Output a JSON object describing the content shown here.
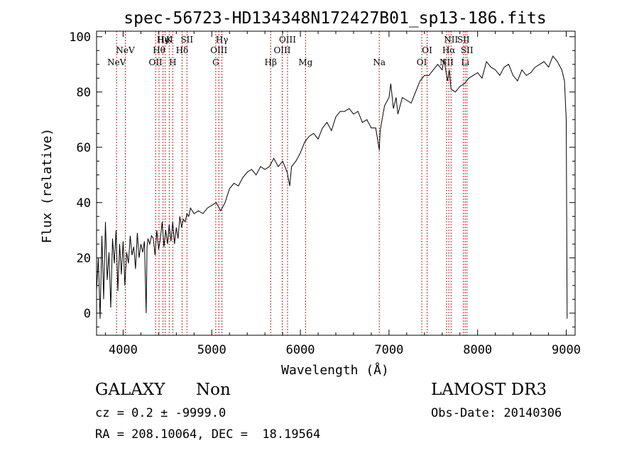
{
  "chart_data": {
    "type": "line",
    "title": "spec-56723-HD134348N172427B01_sp13-186.fits",
    "xlabel": "Wavelength (Å)",
    "ylabel": "Flux (relative)",
    "xlim": [
      3700,
      9100
    ],
    "ylim": [
      -8,
      102
    ],
    "xticks": [
      4000,
      5000,
      6000,
      7000,
      8000,
      9000
    ],
    "yticks": [
      0,
      20,
      40,
      60,
      80,
      100
    ],
    "grid": false,
    "series": [
      {
        "line_color": "#000000",
        "x": [
          3700,
          3720,
          3740,
          3760,
          3780,
          3800,
          3820,
          3840,
          3860,
          3880,
          3900,
          3920,
          3940,
          3960,
          3980,
          4000,
          4020,
          4040,
          4060,
          4080,
          4100,
          4120,
          4140,
          4160,
          4180,
          4200,
          4220,
          4240,
          4260,
          4270,
          4280,
          4300,
          4320,
          4340,
          4360,
          4380,
          4400,
          4420,
          4440,
          4460,
          4480,
          4500,
          4520,
          4540,
          4560,
          4580,
          4600,
          4620,
          4640,
          4660,
          4680,
          4700,
          4720,
          4740,
          4760,
          4780,
          4800,
          4850,
          4900,
          4950,
          5000,
          5050,
          5100,
          5150,
          5200,
          5250,
          5300,
          5350,
          5400,
          5450,
          5500,
          5550,
          5600,
          5650,
          5700,
          5750,
          5800,
          5850,
          5880,
          5900,
          5950,
          6000,
          6050,
          6100,
          6150,
          6200,
          6250,
          6300,
          6350,
          6400,
          6450,
          6500,
          6550,
          6600,
          6650,
          6700,
          6750,
          6800,
          6850,
          6890,
          6900,
          6950,
          7000,
          7020,
          7050,
          7080,
          7100,
          7150,
          7200,
          7250,
          7300,
          7350,
          7400,
          7450,
          7500,
          7550,
          7600,
          7620,
          7650,
          7660,
          7680,
          7700,
          7750,
          7800,
          7850,
          7900,
          7950,
          8000,
          8050,
          8100,
          8150,
          8200,
          8250,
          8300,
          8350,
          8400,
          8450,
          8500,
          8550,
          8600,
          8650,
          8700,
          8750,
          8800,
          8850,
          8900,
          8950,
          8980,
          9000,
          9010
        ],
        "y": [
          8,
          20,
          -2,
          28,
          5,
          33,
          12,
          22,
          2,
          27,
          18,
          30,
          8,
          25,
          14,
          26,
          10,
          22,
          18,
          28,
          21,
          24,
          16,
          29,
          20,
          25,
          22,
          26,
          0,
          24,
          27,
          25,
          28,
          27,
          21,
          30,
          23,
          27,
          33,
          24,
          30,
          25,
          32,
          26,
          33,
          25,
          31,
          27,
          35,
          31,
          34,
          33,
          36,
          35,
          38,
          37,
          36,
          37,
          36,
          38,
          39,
          40,
          37,
          40,
          45,
          47,
          46,
          49,
          51,
          52,
          50,
          53,
          52,
          53,
          56,
          53,
          55,
          51,
          46,
          53,
          55,
          58,
          62,
          64,
          65,
          63,
          67,
          69,
          66,
          71,
          73,
          73,
          74,
          72,
          73,
          69,
          70,
          67,
          67,
          59,
          66,
          75,
          78,
          83,
          74,
          78,
          72,
          78,
          77,
          76,
          80,
          84,
          86,
          86,
          88,
          90,
          88,
          92,
          86,
          84,
          88,
          81,
          80,
          82,
          83,
          85,
          86,
          87,
          85,
          91,
          89,
          88,
          86,
          89,
          90,
          86,
          84,
          88,
          86,
          87,
          89,
          90,
          91,
          89,
          93,
          91,
          88,
          84,
          70,
          -2
        ]
      }
    ],
    "line_color": "#b22222",
    "lines": [
      {
        "label": "NeV",
        "x": 3926
      },
      {
        "label": "NeV",
        "x": 4025
      },
      {
        "label": "OII",
        "x": 4366
      },
      {
        "label": "Hθ",
        "x": 4405
      },
      {
        "label": "Hγ",
        "x": 4450
      },
      {
        "label": "HeI",
        "x": 4474
      },
      {
        "label": "K",
        "x": 4520
      },
      {
        "label": "H",
        "x": 4560
      },
      {
        "label": "Hδ",
        "x": 4665
      },
      {
        "label": "SII",
        "x": 4720
      },
      {
        "label": "G",
        "x": 5045
      },
      {
        "label": "OIII",
        "x": 5080
      },
      {
        "label": "Hγ",
        "x": 5115
      },
      {
        "label": "Hβ",
        "x": 5665
      },
      {
        "label": "OIII",
        "x": 5795
      },
      {
        "label": "OIII",
        "x": 5855
      },
      {
        "label": "Mg",
        "x": 6058
      },
      {
        "label": "Na",
        "x": 6890
      },
      {
        "label": "OI",
        "x": 7370
      },
      {
        "label": "OI",
        "x": 7430
      },
      {
        "label": "NII",
        "x": 7650
      },
      {
        "label": "Hα",
        "x": 7675
      },
      {
        "label": "NII",
        "x": 7700
      },
      {
        "label": "SII",
        "x": 7840
      },
      {
        "label": "Li",
        "x": 7860
      },
      {
        "label": "SII",
        "x": 7880
      }
    ]
  },
  "info": {
    "object_class": "GALAXY",
    "subclass": "Non",
    "survey": "LAMOST DR3",
    "redshift": "cz = 0.2 ± -9999.0",
    "obs_date": "Obs-Date: 20140306",
    "coords": "RA = 208.10064, DEC =  18.19564"
  }
}
